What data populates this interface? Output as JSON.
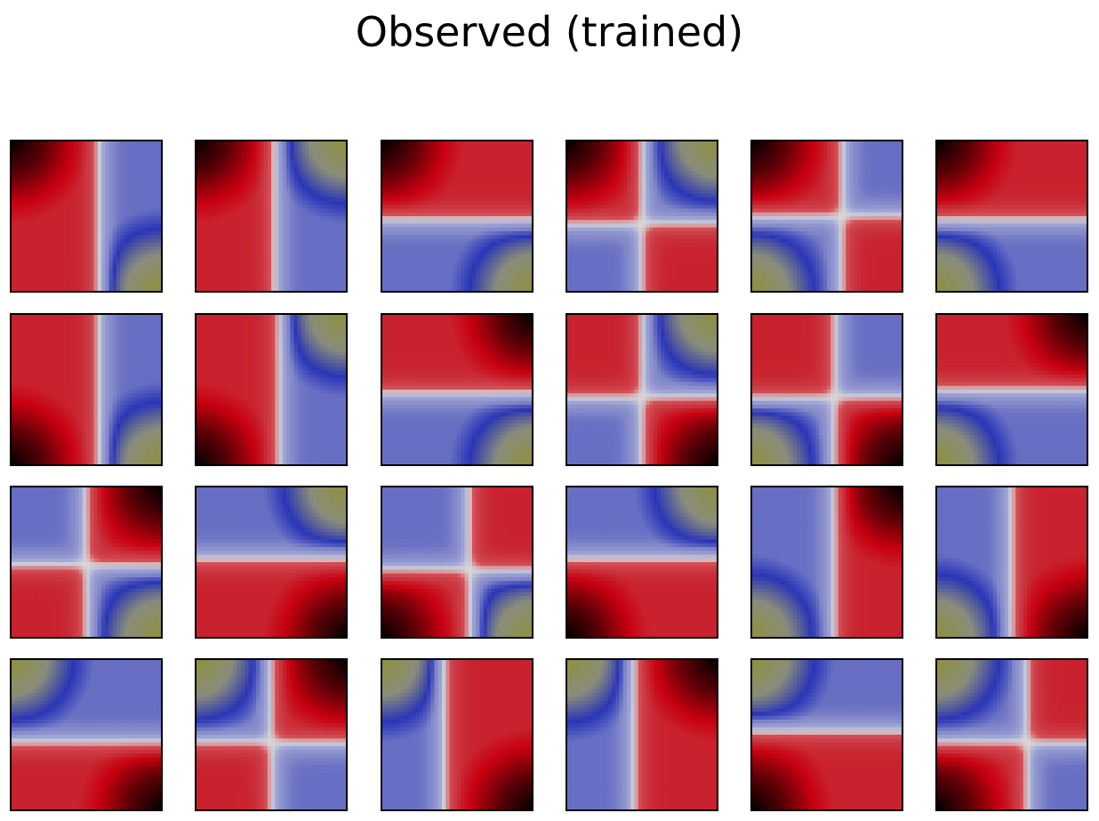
{
  "title": "Observed (trained)",
  "chart_data": {
    "type": "heatmap",
    "title": "Observed (trained)",
    "grid_shape": [
      4,
      6
    ],
    "colormap": {
      "name": "diverging red-blue with dark and olive extremes",
      "stops": [
        {
          "value": -1.0,
          "color": "#8f9039"
        },
        {
          "value": -0.78,
          "color": "#8a8d7a"
        },
        {
          "value": -0.62,
          "color": "#2a35b6"
        },
        {
          "value": -0.45,
          "color": "#8086c8"
        },
        {
          "value": -0.2,
          "color": "#a4a9d6"
        },
        {
          "value": 0.0,
          "color": "#d9d9d9"
        },
        {
          "value": 0.2,
          "color": "#d45058"
        },
        {
          "value": 0.45,
          "color": "#c9303a"
        },
        {
          "value": 0.62,
          "color": "#c80010"
        },
        {
          "value": 0.8,
          "color": "#5a0006"
        },
        {
          "value": 1.0,
          "color": "#000000"
        }
      ]
    },
    "panels": [
      {
        "row": 0,
        "col": 0,
        "vertical_divider": 0.58,
        "horizontal_divider": null,
        "dark_corner": "top-left",
        "olive_corner": "bottom-right"
      },
      {
        "row": 0,
        "col": 1,
        "vertical_divider": 0.52,
        "horizontal_divider": null,
        "dark_corner": "top-left",
        "olive_corner": "top-right"
      },
      {
        "row": 0,
        "col": 2,
        "vertical_divider": null,
        "horizontal_divider": 0.52,
        "dark_corner": "top-left",
        "olive_corner": "bottom-right"
      },
      {
        "row": 0,
        "col": 3,
        "vertical_divider": 0.5,
        "horizontal_divider": 0.55,
        "dark_corner": "top-left",
        "olive_corner": "top-right"
      },
      {
        "row": 0,
        "col": 4,
        "vertical_divider": 0.6,
        "horizontal_divider": 0.5,
        "dark_corner": "top-left",
        "olive_corner": "bottom-left"
      },
      {
        "row": 0,
        "col": 5,
        "vertical_divider": null,
        "horizontal_divider": 0.52,
        "dark_corner": "top-left",
        "olive_corner": "bottom-left"
      },
      {
        "row": 1,
        "col": 0,
        "vertical_divider": 0.58,
        "horizontal_divider": null,
        "dark_corner": "bottom-left",
        "olive_corner": "bottom-right"
      },
      {
        "row": 1,
        "col": 1,
        "vertical_divider": 0.55,
        "horizontal_divider": null,
        "dark_corner": "bottom-left",
        "olive_corner": "top-right"
      },
      {
        "row": 1,
        "col": 2,
        "vertical_divider": null,
        "horizontal_divider": 0.52,
        "dark_corner": "top-right",
        "olive_corner": "bottom-right"
      },
      {
        "row": 1,
        "col": 3,
        "vertical_divider": 0.5,
        "horizontal_divider": 0.55,
        "dark_corner": "bottom-right",
        "olive_corner": "top-right"
      },
      {
        "row": 1,
        "col": 4,
        "vertical_divider": 0.55,
        "horizontal_divider": 0.55,
        "dark_corner": "bottom-right",
        "olive_corner": "bottom-left"
      },
      {
        "row": 1,
        "col": 5,
        "vertical_divider": null,
        "horizontal_divider": 0.5,
        "dark_corner": "top-right",
        "olive_corner": "bottom-left"
      },
      {
        "row": 2,
        "col": 0,
        "vertical_divider": 0.5,
        "horizontal_divider": 0.52,
        "dark_corner": "top-right",
        "olive_corner": "bottom-right"
      },
      {
        "row": 2,
        "col": 1,
        "vertical_divider": null,
        "horizontal_divider": 0.48,
        "dark_corner": "bottom-right",
        "olive_corner": "top-right"
      },
      {
        "row": 2,
        "col": 2,
        "vertical_divider": 0.58,
        "horizontal_divider": 0.55,
        "dark_corner": "bottom-left",
        "olive_corner": "bottom-right"
      },
      {
        "row": 2,
        "col": 3,
        "vertical_divider": null,
        "horizontal_divider": 0.48,
        "dark_corner": "bottom-left",
        "olive_corner": "top-right"
      },
      {
        "row": 2,
        "col": 4,
        "vertical_divider": 0.55,
        "horizontal_divider": null,
        "dark_corner": "top-right",
        "olive_corner": "bottom-left"
      },
      {
        "row": 2,
        "col": 5,
        "vertical_divider": 0.5,
        "horizontal_divider": null,
        "dark_corner": "bottom-right",
        "olive_corner": "bottom-left"
      },
      {
        "row": 3,
        "col": 0,
        "vertical_divider": null,
        "horizontal_divider": 0.55,
        "dark_corner": "bottom-right",
        "olive_corner": "top-left"
      },
      {
        "row": 3,
        "col": 1,
        "vertical_divider": 0.5,
        "horizontal_divider": 0.55,
        "dark_corner": "top-right",
        "olive_corner": "top-left"
      },
      {
        "row": 3,
        "col": 2,
        "vertical_divider": 0.42,
        "horizontal_divider": null,
        "dark_corner": "bottom-right",
        "olive_corner": "top-left"
      },
      {
        "row": 3,
        "col": 3,
        "vertical_divider": 0.45,
        "horizontal_divider": null,
        "dark_corner": "top-right",
        "olive_corner": "top-left"
      },
      {
        "row": 3,
        "col": 4,
        "vertical_divider": null,
        "horizontal_divider": 0.48,
        "dark_corner": "bottom-left",
        "olive_corner": "top-left"
      },
      {
        "row": 3,
        "col": 5,
        "vertical_divider": 0.6,
        "horizontal_divider": 0.55,
        "dark_corner": "bottom-left",
        "olive_corner": "top-left"
      }
    ],
    "axes": {
      "ticks": false,
      "labels": false
    },
    "grid": false,
    "legend": "none"
  }
}
